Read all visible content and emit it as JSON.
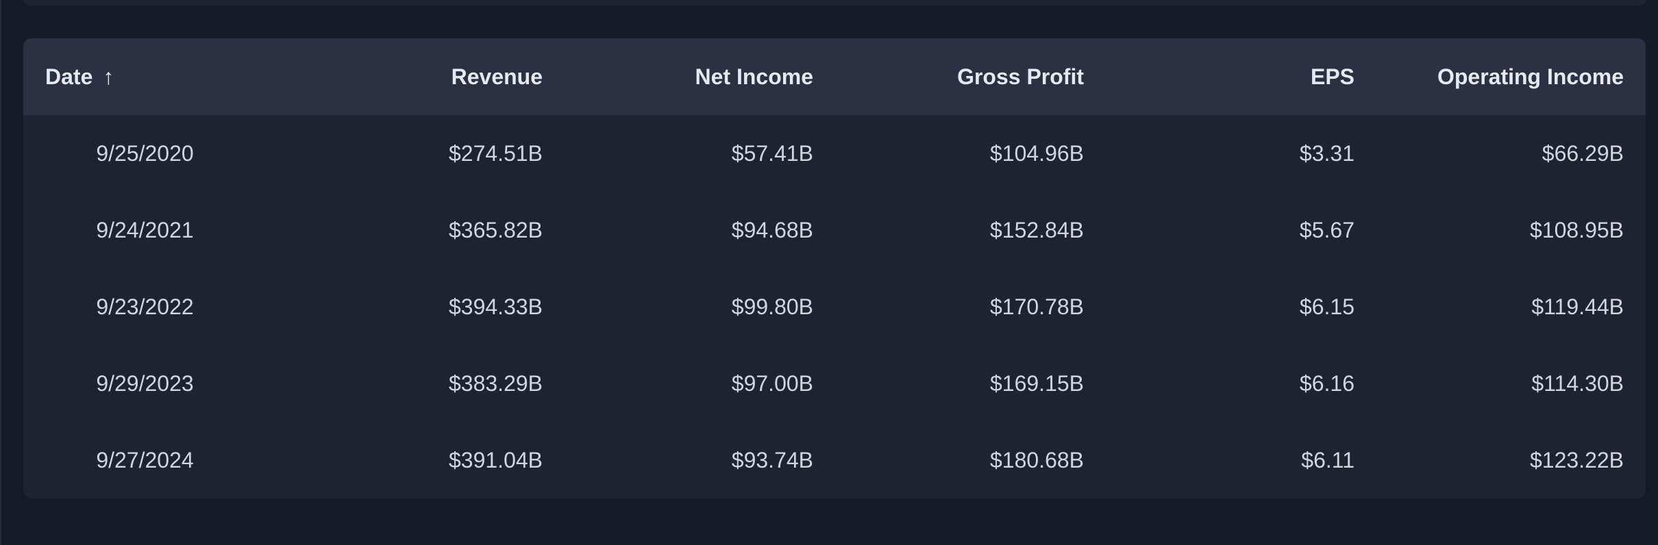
{
  "table": {
    "headers": {
      "date": "Date",
      "sort_arrow": "↑",
      "revenue": "Revenue",
      "net_income": "Net Income",
      "gross_profit": "Gross Profit",
      "eps": "EPS",
      "operating_income": "Operating Income"
    },
    "rows": [
      {
        "date": "9/25/2020",
        "revenue": "$274.51B",
        "net_income": "$57.41B",
        "gross_profit": "$104.96B",
        "eps": "$3.31",
        "operating_income": "$66.29B"
      },
      {
        "date": "9/24/2021",
        "revenue": "$365.82B",
        "net_income": "$94.68B",
        "gross_profit": "$152.84B",
        "eps": "$5.67",
        "operating_income": "$108.95B"
      },
      {
        "date": "9/23/2022",
        "revenue": "$394.33B",
        "net_income": "$99.80B",
        "gross_profit": "$170.78B",
        "eps": "$6.15",
        "operating_income": "$119.44B"
      },
      {
        "date": "9/29/2023",
        "revenue": "$383.29B",
        "net_income": "$97.00B",
        "gross_profit": "$169.15B",
        "eps": "$6.16",
        "operating_income": "$114.30B"
      },
      {
        "date": "9/27/2024",
        "revenue": "$391.04B",
        "net_income": "$93.74B",
        "gross_profit": "$180.68B",
        "eps": "$6.11",
        "operating_income": "$123.22B"
      }
    ]
  },
  "colors": {
    "background": "#151a26",
    "card": "#1f2331",
    "header_row": "#2b3142",
    "header_text": "#e7e9ee",
    "cell_text": "#d2d5dc"
  }
}
